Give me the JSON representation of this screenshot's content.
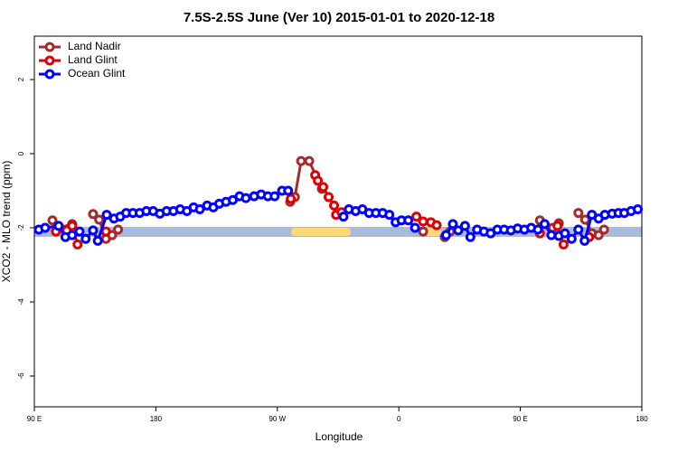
{
  "chart_data": {
    "type": "line",
    "title": "7.5S-2.5S June (Ver 10)   2015-01-01 to 2020-12-18",
    "x_label": "Longitude",
    "y_label": "XCO2 - MLO trend (ppm)",
    "xlim": [
      90,
      540
    ],
    "ylim": [
      -6.83,
      3.17
    ],
    "xticks": [
      {
        "value": 90,
        "label": "90 E"
      },
      180,
      {
        "value": 270,
        "label": "90 W"
      },
      {
        "value": 360,
        "label": "0"
      },
      {
        "value": 450,
        "label": "90 E"
      },
      {
        "value": 540,
        "label": "180"
      }
    ],
    "yticks": [
      -6,
      -4,
      -2,
      0,
      2
    ],
    "legend": "top-left",
    "series": [
      {
        "name": "Land Nadir",
        "color": "#a52a2a",
        "x": [
          103.4,
          108.8,
          118,
          null,
          133.5,
          138,
          143,
          147.6,
          152,
          null,
          279.5,
          283,
          287.6,
          293.6,
          303,
          null,
          378,
          null,
          394,
          398,
          null,
          464.5,
          474,
          478.5,
          null,
          493,
          498,
          503,
          508,
          512
        ],
        "values": [
          -1.8,
          -2.0,
          -1.9,
          null,
          -1.63,
          -1.78,
          -2.3,
          -2.2,
          -2.05,
          null,
          -1.3,
          -1.17,
          -0.2,
          -0.2,
          -0.95,
          null,
          -2.1,
          null,
          -2.25,
          -2.1,
          null,
          -1.8,
          -2.0,
          -1.88,
          null,
          -1.6,
          -1.78,
          -2.15,
          -2.2,
          -2.05
        ]
      },
      {
        "name": "Land Glint",
        "color": "#e00000",
        "x": [
          106,
          114,
          118,
          122,
          null,
          143,
          null,
          280,
          null,
          298,
          300,
          304,
          308,
          312,
          313.5,
          317.5,
          null,
          373,
          378,
          383.7,
          388,
          null,
          464.5,
          null,
          477.5,
          482,
          null,
          501
        ],
        "values": [
          -2.1,
          -2.07,
          -1.95,
          -2.45,
          null,
          -2.1,
          null,
          -1.22,
          null,
          -0.58,
          -0.73,
          -0.9,
          -1.17,
          -1.4,
          -1.65,
          -1.58,
          null,
          -1.7,
          -1.83,
          -1.85,
          -1.93,
          null,
          -2.15,
          null,
          -1.95,
          -2.45,
          null,
          -2.25
        ]
      },
      {
        "name": "Ocean Glint",
        "color": "#0000ff",
        "x": [
          93.3,
          98,
          108,
          113,
          118,
          123.5,
          128,
          133.5,
          137,
          143.6,
          149,
          153.6,
          158,
          163,
          168,
          173,
          178,
          183,
          188,
          193,
          198,
          203,
          208,
          212.6,
          218,
          222.6,
          227,
          232,
          237,
          242,
          246.7,
          252.8,
          258,
          263,
          268,
          273.5,
          278,
          null,
          319,
          323,
          328,
          333,
          338,
          343,
          348,
          353,
          357.6,
          362,
          367,
          372,
          null,
          395,
          400,
          404,
          409,
          413,
          418,
          423,
          428,
          433,
          438,
          443,
          448,
          453,
          458,
          463,
          468,
          473,
          478.5,
          483,
          488,
          493,
          497.6,
          503,
          508,
          512.6,
          518,
          522.7,
          527,
          532,
          537
        ],
        "values": [
          -2.05,
          -2.0,
          -1.95,
          -2.25,
          -2.2,
          -2.1,
          -2.3,
          -2.07,
          -2.35,
          -1.65,
          -1.75,
          -1.7,
          -1.6,
          -1.6,
          -1.6,
          -1.55,
          -1.55,
          -1.62,
          -1.55,
          -1.55,
          -1.5,
          -1.55,
          -1.45,
          -1.5,
          -1.4,
          -1.45,
          -1.35,
          -1.3,
          -1.25,
          -1.15,
          -1.2,
          -1.15,
          -1.1,
          -1.15,
          -1.15,
          -1.0,
          -1.0,
          null,
          -1.7,
          -1.5,
          -1.55,
          -1.5,
          -1.6,
          -1.6,
          -1.6,
          -1.65,
          -1.85,
          -1.8,
          -1.8,
          -2.0,
          null,
          -2.2,
          -1.9,
          -2.07,
          -1.95,
          -2.25,
          -2.05,
          -2.1,
          -2.15,
          -2.05,
          -2.05,
          -2.07,
          -2.02,
          -2.05,
          -2.0,
          -2.05,
          -1.9,
          -2.2,
          -2.22,
          -2.15,
          -2.3,
          -2.05,
          -2.35,
          -1.65,
          -1.75,
          -1.65,
          -1.62,
          -1.6,
          -1.6,
          -1.55,
          -1.5
        ]
      }
    ]
  }
}
